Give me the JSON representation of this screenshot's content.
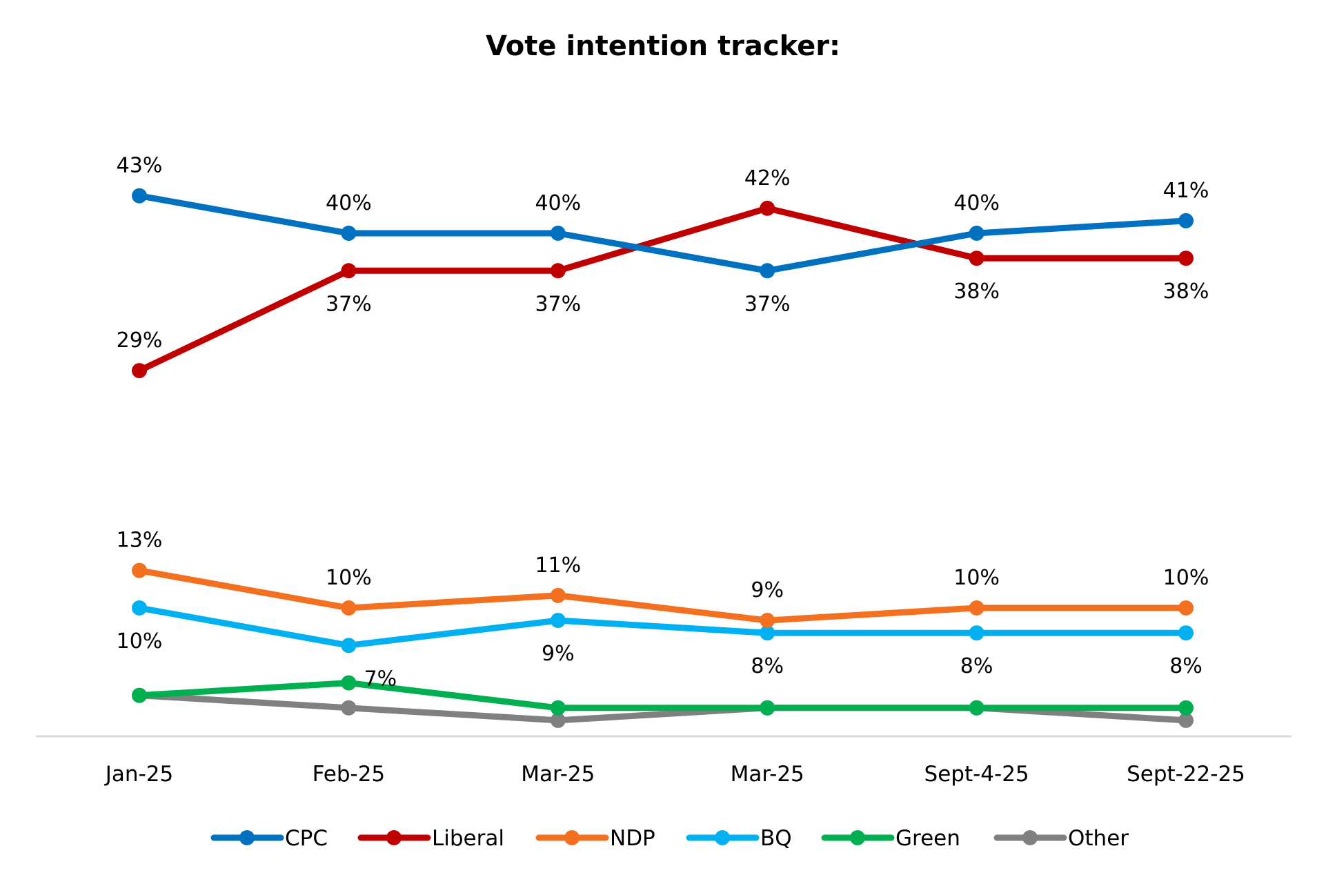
{
  "chart_data": {
    "type": "line",
    "title": "Vote intention tracker:",
    "xlabel": "",
    "ylabel": "",
    "ylim": [
      0,
      43
    ],
    "grid": false,
    "legend_position": "bottom",
    "categories": [
      "Jan-25",
      "Feb-25",
      "Mar-25",
      "Mar-25",
      "Sept-4-25",
      "Sept-22-25"
    ],
    "series": [
      {
        "name": "CPC",
        "color": "#0070C0",
        "values": [
          43,
          40,
          40,
          37,
          40,
          41
        ],
        "labels": [
          "43%",
          "40%",
          "40%",
          "37%",
          "40%",
          "41%"
        ],
        "label_side": [
          "above",
          "above",
          "above",
          "below",
          "above",
          "above"
        ]
      },
      {
        "name": "Liberal",
        "color": "#C00000",
        "values": [
          29,
          37,
          37,
          42,
          38,
          38
        ],
        "labels": [
          "29%",
          "37%",
          "37%",
          "42%",
          "38%",
          "38%"
        ],
        "label_side": [
          "above",
          "below",
          "below",
          "above",
          "below",
          "below"
        ]
      },
      {
        "name": "NDP",
        "color": "#F37021",
        "values": [
          13,
          10,
          11,
          9,
          10,
          10
        ],
        "labels": [
          "13%",
          "10%",
          "11%",
          "9%",
          "10%",
          "10%"
        ],
        "label_side": [
          "above",
          "above",
          "above",
          "above",
          "above",
          "above"
        ]
      },
      {
        "name": "BQ",
        "color": "#00B0F0",
        "values": [
          10,
          7,
          9,
          8,
          8,
          8
        ],
        "labels": [
          "10%",
          "7%",
          "9%",
          "8%",
          "8%",
          "8%"
        ],
        "label_side": [
          "below",
          "below",
          "below",
          "below",
          "below",
          "below"
        ]
      },
      {
        "name": "Green",
        "color": "#00B050",
        "values": [
          3,
          4,
          2,
          2,
          2,
          2
        ],
        "labels": null,
        "label_side": null
      },
      {
        "name": "Other",
        "color": "#808080",
        "values": [
          3,
          2,
          1,
          2,
          2,
          1
        ],
        "labels": null,
        "label_side": null
      }
    ]
  }
}
